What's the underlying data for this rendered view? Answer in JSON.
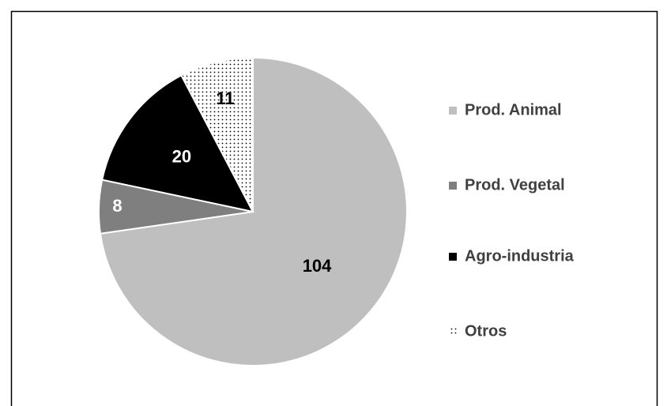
{
  "chart_data": {
    "type": "pie",
    "categories": [
      "Prod. Animal",
      "Prod. Vegetal",
      "Agro-industria",
      "Otros"
    ],
    "values": [
      104,
      8,
      20,
      11
    ],
    "colors": [
      "#bfbfbf",
      "#7f7f7f",
      "#000000",
      "#ffffff"
    ],
    "patterns": [
      "solid",
      "solid",
      "solid",
      "dots"
    ],
    "label_colors": [
      "#000000",
      "#ffffff",
      "#ffffff",
      "#000000"
    ],
    "legend": "right"
  }
}
